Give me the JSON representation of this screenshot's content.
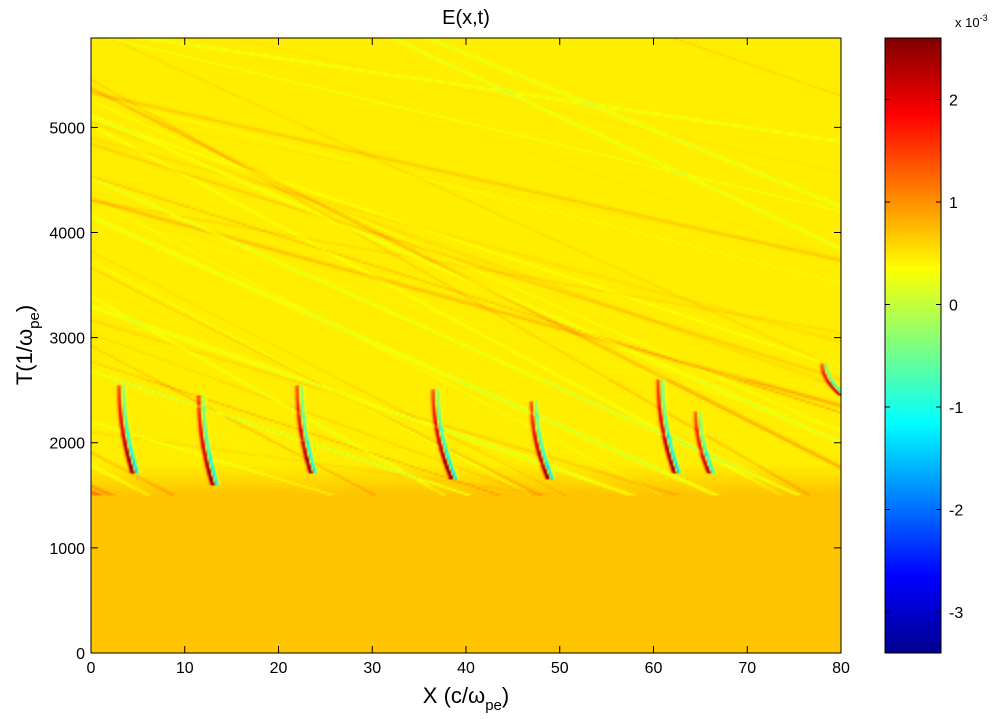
{
  "chart_data": {
    "type": "heatmap",
    "title": "E(x,t)",
    "xlabel": {
      "main": "X (c/ω",
      "sub": "pe",
      "close": ")"
    },
    "ylabel": {
      "main": "T(1/ω",
      "sub": "pe",
      "close": ")"
    },
    "xlim": [
      0,
      80
    ],
    "ylim": [
      0,
      5850
    ],
    "xticks": [
      0,
      10,
      20,
      30,
      40,
      50,
      60,
      70,
      80
    ],
    "yticks": [
      0,
      1000,
      2000,
      3000,
      4000,
      5000
    ],
    "grid": false,
    "colormap": "jet",
    "colorbar": {
      "range": [
        -3.4,
        2.6
      ],
      "ticks": [
        -3,
        -2,
        -1,
        0,
        1,
        2
      ],
      "multiplier_base": "x 10",
      "multiplier_exp": "-3"
    },
    "background_value": 0.45,
    "lower_band": {
      "t_range": [
        0,
        1800
      ],
      "value": 0.7
    },
    "structures": [
      {
        "x0": 3.0,
        "t_start": 2550,
        "t_end": 1700,
        "dx": 1.5,
        "peak": 2.6
      },
      {
        "x0": 11.5,
        "t_start": 2450,
        "t_end": 1600,
        "dx": 1.5,
        "peak": 2.5
      },
      {
        "x0": 22.0,
        "t_start": 2550,
        "t_end": 1700,
        "dx": 1.5,
        "peak": 2.4
      },
      {
        "x0": 36.5,
        "t_start": 2500,
        "t_end": 1650,
        "dx": 2.0,
        "peak": 2.6
      },
      {
        "x0": 47.0,
        "t_start": 2400,
        "t_end": 1650,
        "dx": 1.8,
        "peak": 2.5
      },
      {
        "x0": 60.5,
        "t_start": 2600,
        "t_end": 1700,
        "dx": 1.8,
        "peak": 2.6
      },
      {
        "x0": 64.5,
        "t_start": 2300,
        "t_end": 1700,
        "dx": 1.5,
        "peak": 2.2
      },
      {
        "x0": 78.0,
        "t_start": 2750,
        "t_end": 2450,
        "dx": 2.0,
        "peak": 2.3
      }
    ]
  }
}
